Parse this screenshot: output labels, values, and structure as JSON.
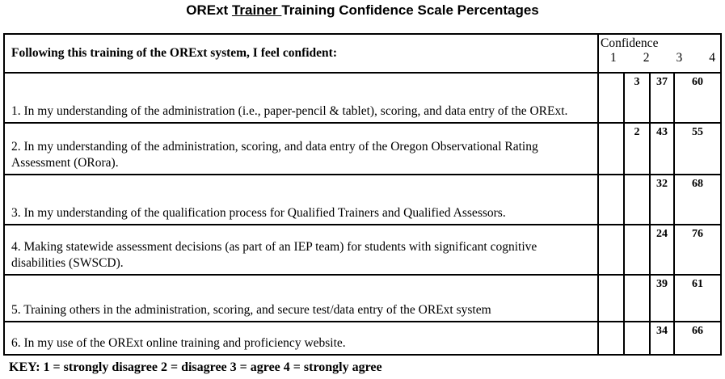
{
  "title": {
    "part1": "ORExt ",
    "underlined": "Trainer ",
    "part2": "Training Confidence Scale Percentages"
  },
  "table": {
    "header": "Following this training of the ORExt system, I feel confident:",
    "confidence_label": "Confidence",
    "scale": [
      "1",
      "2",
      "3",
      "4"
    ],
    "rows": [
      {
        "question": "1. In my understanding of the administration (i.e., paper-pencil & tablet), scoring, and data entry of the ORExt.",
        "values": [
          "",
          "3",
          "37",
          "60"
        ]
      },
      {
        "question": "2. In my understanding of the administration, scoring, and data entry of the Oregon Observational Rating Assessment (ORora).",
        "values": [
          "",
          "2",
          "43",
          "55"
        ]
      },
      {
        "question": "3. In my understanding of the qualification process for Qualified Trainers and Qualified Assessors.",
        "values": [
          "",
          "",
          "32",
          "68"
        ]
      },
      {
        "question": "4. Making statewide assessment decisions (as part of an IEP team) for students with significant cognitive disabilities (SWSCD).",
        "values": [
          "",
          "",
          "24",
          "76"
        ]
      },
      {
        "question": "5. Training others in the administration, scoring, and secure test/data entry of the ORExt system",
        "values": [
          "",
          "",
          "39",
          "61"
        ]
      },
      {
        "question": "6. In my use of the ORExt online training and proficiency website.",
        "values": [
          "",
          "",
          "34",
          "66"
        ]
      }
    ]
  },
  "key": "KEY: 1 = strongly disagree 2 = disagree 3 = agree 4 = strongly agree"
}
